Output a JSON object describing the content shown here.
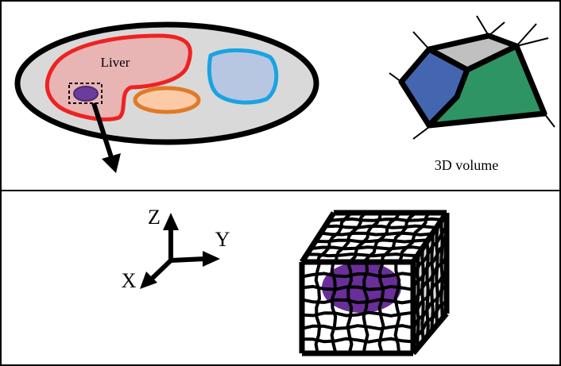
{
  "labels": {
    "liver": "Liver",
    "volume": "3D volume",
    "z": "Z",
    "y": "Y",
    "x": "X"
  }
}
